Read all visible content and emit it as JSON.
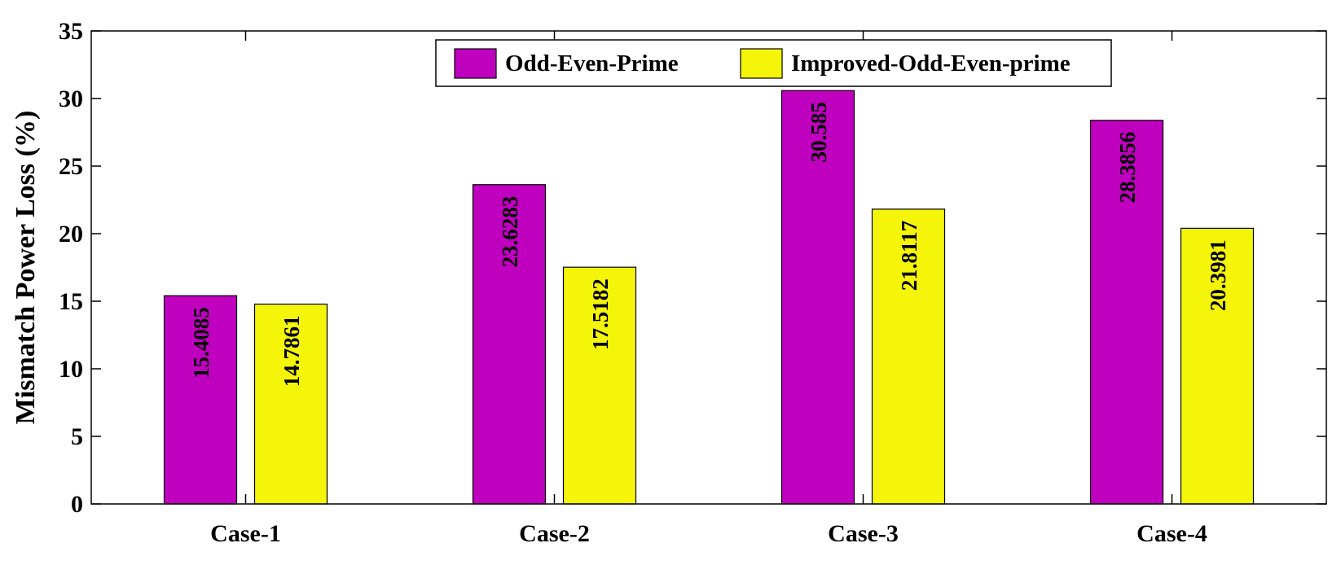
{
  "chart_data": {
    "type": "bar",
    "title": "",
    "xlabel": "",
    "ylabel": "Mismatch Power Loss (%)",
    "categories": [
      "Case-1",
      "Case-2",
      "Case-3",
      "Case-4"
    ],
    "series": [
      {
        "name": "Odd-Even-Prime",
        "values": [
          15.4085,
          23.6283,
          30.585,
          28.3856
        ],
        "labels": [
          "15.4085",
          "23.6283",
          "30.585",
          "28.3856"
        ],
        "color": "#bf00bf"
      },
      {
        "name": "Improved-Odd-Even-prime",
        "values": [
          14.7861,
          17.5182,
          21.8117,
          20.3981
        ],
        "labels": [
          "14.7861",
          "17.5182",
          "21.8117",
          "20.3981"
        ],
        "color": "#f5f50a"
      }
    ],
    "ylim": [
      0,
      35
    ],
    "yticks": [
      0,
      5,
      10,
      15,
      20,
      25,
      30,
      35
    ],
    "grid": false,
    "legend_position": "top-center"
  }
}
